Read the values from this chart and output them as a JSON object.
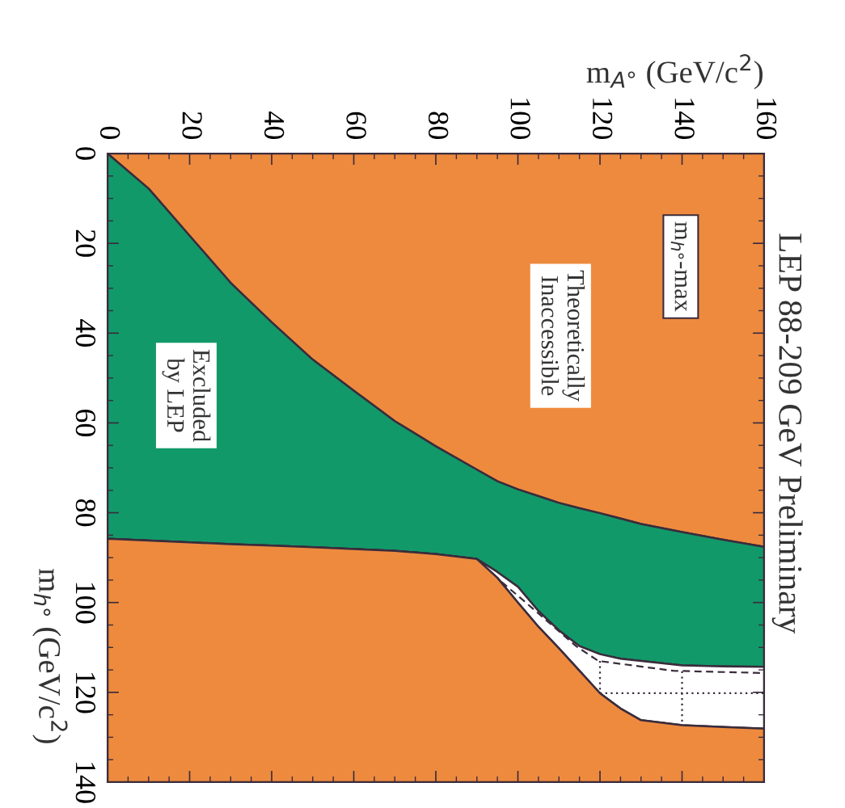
{
  "chart_data": {
    "type": "area",
    "stacked": true,
    "title": "LEP 88-209 GeV Preliminary",
    "xlabel": "m$_{A°}$ (GeV/c$^{2}$)",
    "ylabel": "m$_{h°}$ (GeV/c$^{2}$)",
    "annotations": [
      "m$_{h°}$-max",
      "Theoretically\nInaccessible",
      "Excluded\nby LEP"
    ],
    "xlim": [
      0,
      160
    ],
    "xticks": [
      0,
      20,
      40,
      60,
      80,
      100,
      120,
      140,
      160
    ],
    "ylim": [
      140,
      0
    ],
    "yticks": [
      0,
      20,
      40,
      60,
      80,
      100,
      120,
      140
    ],
    "x": [
      0,
      10,
      20,
      30,
      40,
      50,
      60,
      70,
      80,
      90,
      95,
      100,
      105,
      110,
      115,
      120,
      125,
      130,
      140,
      150,
      160
    ],
    "series": [
      {
        "color": "#ee8a3e",
        "values": [
          0,
          7.8,
          18.3,
          28.8,
          37.6,
          45.9,
          52.8,
          59.6,
          65.2,
          70.4,
          73,
          74.8,
          76.3,
          77.8,
          79,
          80.1,
          81.3,
          82.5,
          84.3,
          86,
          87.6
        ]
      },
      {
        "color": "#12996a",
        "values": [
          85.8,
          78.4,
          68.3,
          58.2,
          49.7,
          41.8,
          35.3,
          28.9,
          24.0,
          19.9,
          20.2,
          21.7,
          25.6,
          28.4,
          30.7,
          31.4,
          31.2,
          30.5,
          29.7,
          28.2,
          26.7
        ]
      },
      {
        "color": "#ffffff",
        "values": [
          0,
          0,
          0,
          0,
          0,
          0,
          0,
          0,
          0,
          0,
          1.3,
          3.5,
          3.5,
          4,
          5.5,
          8.7,
          11.1,
          13.2,
          13.3,
          13.5,
          13.8
        ]
      },
      {
        "color": "#ee8a3e",
        "values": [
          54.2,
          53.8,
          53.4,
          53,
          52.7,
          52.3,
          51.9,
          51.5,
          50.8,
          49.7,
          45.5,
          40,
          34.6,
          29.8,
          24.8,
          19.8,
          16.4,
          13.8,
          12.7,
          12.3,
          11.9
        ]
      },
      {
        "type": "line",
        "color": "#3a2c3c",
        "line_style": "dashed",
        "x": [
          96,
          101.3,
          114.3,
          119.6,
          137.9,
          160
        ],
        "values": [
          95.4,
          99.5,
          109.8,
          113,
          115.2,
          115.7
        ]
      },
      {
        "type": "line",
        "color": "#3a2c3c",
        "line_style": "dotted",
        "x": [
          120,
          120
        ],
        "values": [
          113,
          120.2
        ]
      },
      {
        "type": "line",
        "color": "#3a2c3c",
        "line_style": "dotted",
        "x": [
          140,
          140
        ],
        "values": [
          115.3,
          127.3
        ]
      },
      {
        "type": "line",
        "color": "#3a2c3c",
        "line_style": "dotted",
        "x": [
          120,
          160
        ],
        "values": [
          120.2,
          120.2
        ]
      }
    ]
  }
}
